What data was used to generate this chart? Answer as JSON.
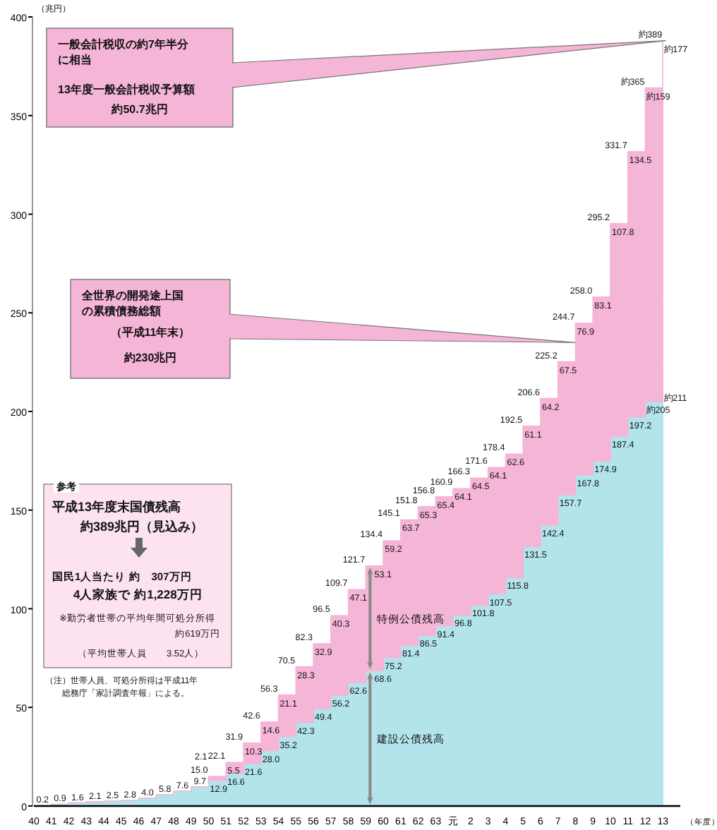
{
  "chart_data": {
    "type": "area",
    "stacked": true,
    "ylabel": "（兆円）",
    "xlabel": "（年度）",
    "categories": [
      "40",
      "41",
      "42",
      "43",
      "44",
      "45",
      "46",
      "47",
      "48",
      "49",
      "50",
      "51",
      "52",
      "53",
      "54",
      "55",
      "56",
      "57",
      "58",
      "59",
      "60",
      "61",
      "62",
      "63",
      "元",
      "2",
      "3",
      "4",
      "5",
      "6",
      "7",
      "8",
      "9",
      "10",
      "11",
      "12",
      "13"
    ],
    "ylim": [
      0,
      400
    ],
    "yticks": [
      0,
      50,
      100,
      150,
      200,
      250,
      300,
      350,
      400
    ],
    "series": [
      {
        "name": "建設公債残高",
        "color": "#b3e4ec",
        "values": [
          0.2,
          0.9,
          1.6,
          2.1,
          2.5,
          2.8,
          4.0,
          5.8,
          7.6,
          9.7,
          12.9,
          16.6,
          21.6,
          28.0,
          35.2,
          42.3,
          49.4,
          56.2,
          62.6,
          68.6,
          75.2,
          81.4,
          86.5,
          91.4,
          96.8,
          101.8,
          107.5,
          115.8,
          131.5,
          142.4,
          157.7,
          167.8,
          174.9,
          187.4,
          197.2,
          205,
          211
        ],
        "value_labels": [
          "0.2",
          "0.9",
          "1.6",
          "2.1",
          "2.5",
          "2.8",
          "4.0",
          "5.8",
          "7.6",
          "9.7",
          "12.9",
          "16.6",
          "21.6",
          "28.0",
          "35.2",
          "42.3",
          "49.4",
          "56.2",
          "62.6",
          "68.6",
          "75.2",
          "81.4",
          "86.5",
          "91.4",
          "96.8",
          "101.8",
          "107.5",
          "115.8",
          "131.5",
          "142.4",
          "157.7",
          "167.8",
          "174.9",
          "187.4",
          "197.2",
          "約205",
          "約211"
        ]
      },
      {
        "name": "特例公債残高",
        "color": "#f5b5d6",
        "values": [
          0,
          0,
          0,
          0,
          0,
          0,
          0,
          0,
          0,
          0,
          2.1,
          5.5,
          10.3,
          14.6,
          21.1,
          28.3,
          32.9,
          40.3,
          47.1,
          53.1,
          59.2,
          63.7,
          65.3,
          65.4,
          64.1,
          64.5,
          64.1,
          62.6,
          61.1,
          64.2,
          67.5,
          76.9,
          83.1,
          107.8,
          134.5,
          159,
          177
        ],
        "value_labels": [
          null,
          null,
          null,
          null,
          null,
          null,
          null,
          null,
          null,
          null,
          "2.1",
          "5.5",
          "10.3",
          "14.6",
          "21.1",
          "28.3",
          "32.9",
          "40.3",
          "47.1",
          "53.1",
          "59.2",
          "63.7",
          "65.3",
          "65.4",
          "64.1",
          "64.5",
          "64.1",
          "62.6",
          "61.1",
          "64.2",
          "67.5",
          "76.9",
          "83.1",
          "107.8",
          "134.5",
          "約159",
          "約177"
        ]
      }
    ],
    "totals": [
      null,
      null,
      null,
      null,
      null,
      null,
      null,
      null,
      null,
      null,
      "15.0",
      "22.1",
      "31.9",
      "42.6",
      "56.3",
      "70.5",
      "82.3",
      "96.5",
      "109.7",
      "121.7",
      "134.4",
      "145.1",
      "151.8",
      "156.8",
      "160.9",
      "166.3",
      "171.6",
      "178.4",
      "192.5",
      "206.6",
      "225.2",
      "244.7",
      "258.0",
      "295.2",
      "331.7",
      "約365",
      "約389"
    ],
    "annotations": [
      "一般会計税収の約7年半分に相当",
      "13年度一般会計税収予算額",
      "約50.7兆円",
      "全世界の開発途上国の累積債務総額",
      "（平成11年末）",
      "約230兆円",
      "参考",
      "平成13年度末国債残高",
      "約389兆円（見込み）",
      "国民1人当たり 約　307万円",
      "4人家族で 約1,228万円",
      "※勤労者世帯の平均年間可処分所得",
      "約619万円",
      "（平均世帯人員　　3.52人）",
      "（注）世帯人員、可処分所得は平成11年総務庁「家計調査年報」による。"
    ]
  }
}
